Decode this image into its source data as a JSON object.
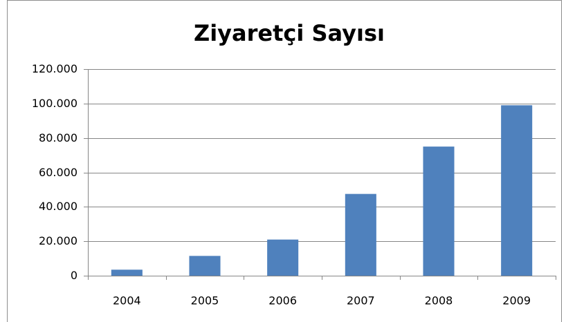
{
  "chart_data": {
    "type": "bar",
    "title": "Ziyaretçi Sayısı",
    "categories": [
      "2004",
      "2005",
      "2006",
      "2007",
      "2008",
      "2009"
    ],
    "values": [
      3500,
      11500,
      21000,
      47500,
      75000,
      99000
    ],
    "color": "#4f81bd",
    "ylim": [
      0,
      120000
    ],
    "yticks": [
      0,
      {
        "value": 20000,
        "label": "20.000"
      },
      {
        "value": 40000,
        "label": "40.000"
      },
      {
        "value": 60000,
        "label": "60.000"
      },
      {
        "value": 80000,
        "label": "80.000"
      },
      {
        "value": 100000,
        "label": "100.000"
      },
      {
        "value": 120000,
        "label": "120.000"
      }
    ],
    "grid": true
  }
}
